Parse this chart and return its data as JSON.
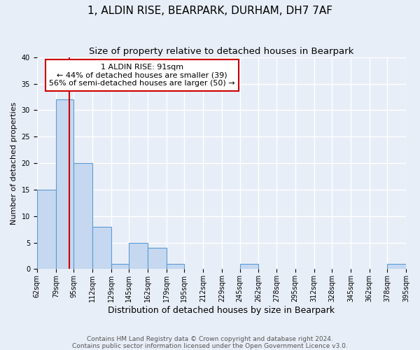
{
  "title": "1, ALDIN RISE, BEARPARK, DURHAM, DH7 7AF",
  "subtitle": "Size of property relative to detached houses in Bearpark",
  "xlabel": "Distribution of detached houses by size in Bearpark",
  "ylabel": "Number of detached properties",
  "bin_edges": [
    62,
    79,
    95,
    112,
    129,
    145,
    162,
    179,
    195,
    212,
    229,
    245,
    262,
    278,
    295,
    312,
    328,
    345,
    362,
    378,
    395
  ],
  "bar_heights": [
    15,
    32,
    20,
    8,
    1,
    5,
    4,
    1,
    0,
    0,
    0,
    1,
    0,
    0,
    0,
    0,
    0,
    0,
    0,
    1
  ],
  "bar_color": "#c5d8f0",
  "bar_edge_color": "#5b9bd5",
  "bar_edge_width": 0.8,
  "ylim": [
    0,
    40
  ],
  "yticks": [
    0,
    5,
    10,
    15,
    20,
    25,
    30,
    35,
    40
  ],
  "property_size": 91,
  "red_line_color": "#cc0000",
  "annotation_text": "1 ALDIN RISE: 91sqm\n← 44% of detached houses are smaller (39)\n56% of semi-detached houses are larger (50) →",
  "annotation_box_color": "#cc0000",
  "bg_color": "#e8eef7",
  "fig_bg_color": "#e8eef7",
  "grid_color": "#ffffff",
  "footer_text": "Contains HM Land Registry data © Crown copyright and database right 2024.\nContains public sector information licensed under the Open Government Licence v3.0.",
  "title_fontsize": 11,
  "subtitle_fontsize": 9.5,
  "xlabel_fontsize": 9,
  "ylabel_fontsize": 8,
  "tick_fontsize": 7,
  "annotation_fontsize": 8,
  "footer_fontsize": 6.5
}
